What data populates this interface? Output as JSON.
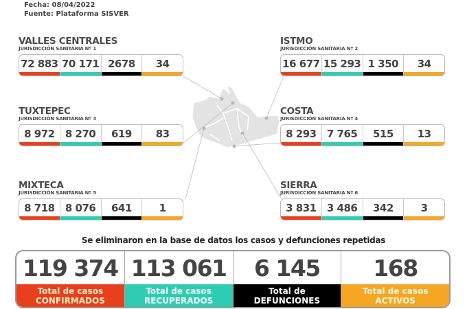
{
  "header": {
    "fecha": "Fecha: 08/04/2022",
    "fuente": "Fuente: Plataforma SISVER"
  },
  "colors": {
    "confirmados": "#e8401c",
    "recuperados": "#2ecdb3",
    "defunciones": "#000000",
    "activos": "#f5a623"
  },
  "regions": [
    {
      "name": "VALLES CENTRALES",
      "sub": "JURISDICCIÓN SANITARIA Nº 1",
      "values": [
        "72 883",
        "70 171",
        "2678",
        "34"
      ]
    },
    {
      "name": "ISTMO",
      "sub": "JURISDICCIÓN SANITARIA Nº 2",
      "values": [
        "16 677",
        "15 293",
        "1 350",
        "34"
      ]
    },
    {
      "name": "TUXTEPEC",
      "sub": "JURISDICCIÓN SANITARIA Nº 3",
      "values": [
        "8 972",
        "8 270",
        "619",
        "83"
      ]
    },
    {
      "name": "COSTA",
      "sub": "JURISDICCIÓN SANITARIA Nº 4",
      "values": [
        "8 293",
        "7 765",
        "515",
        "13"
      ]
    },
    {
      "name": "MIXTECA",
      "sub": "JURISDICCIÓN SANITARIA Nº 5",
      "values": [
        "8 718",
        "8 076",
        "641",
        "1"
      ]
    },
    {
      "name": "SIERRA",
      "sub": "JURISDICCIÓN SANITARIA Nº 6",
      "values": [
        "3 831",
        "3 486",
        "342",
        "3"
      ]
    }
  ],
  "note": "Se eliminaron en la base de datos los casos  y defunciones repetidas",
  "totals": [
    {
      "value": "119 374",
      "l1": "Total de casos",
      "l2": "CONFIRMADOS"
    },
    {
      "value": "113 061",
      "l1": "Total de casos",
      "l2": "RECUPERADOS"
    },
    {
      "value": "6 145",
      "l1": "Total de",
      "l2": "DEFUNCIONES"
    },
    {
      "value": "168",
      "l1": "Total de casos",
      "l2": "ACTIVOS"
    }
  ]
}
